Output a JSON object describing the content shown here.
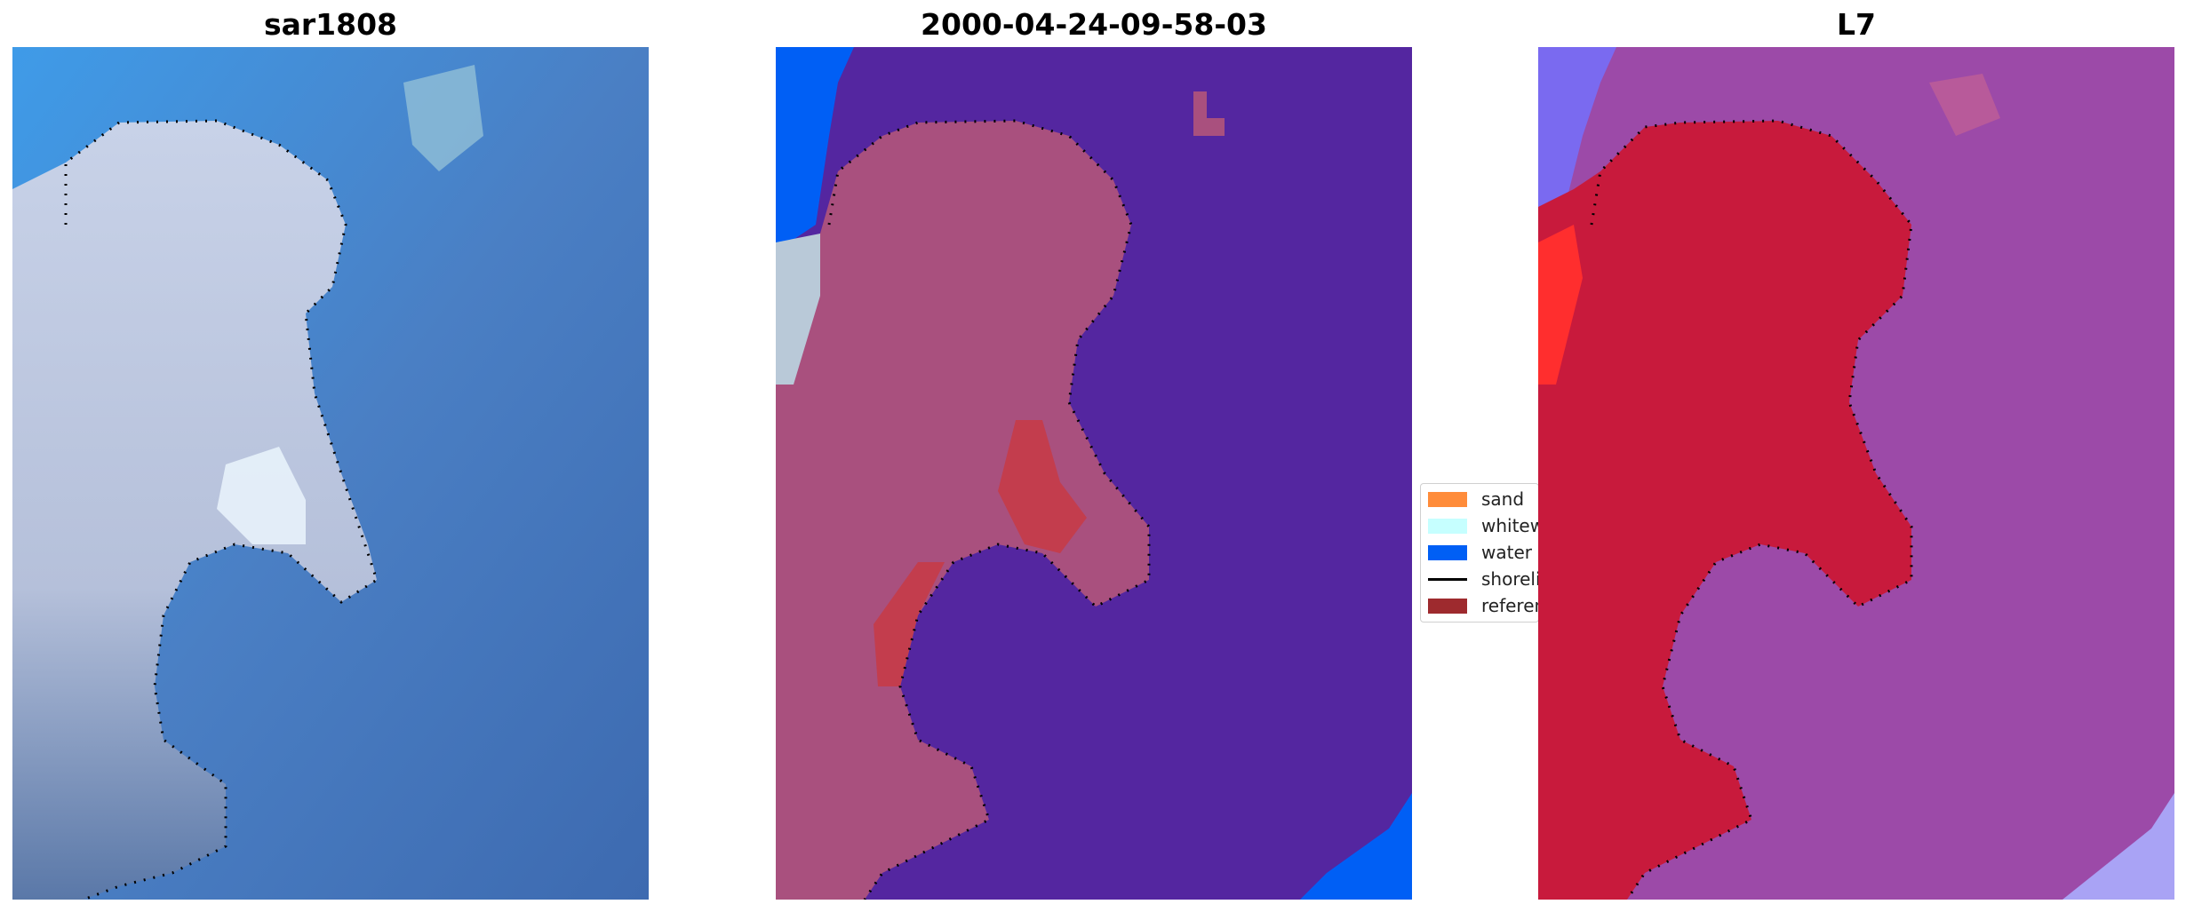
{
  "panels": [
    {
      "title": "sar1808",
      "image": "RGB satellite image of coastline with sand and water"
    },
    {
      "title": "2000-04-24-09-58-03",
      "image": "classified image: sand, whitewater, water overlay with reference shoreline"
    },
    {
      "title": "L7",
      "image": "MNDWI / classification probability image"
    }
  ],
  "legend": {
    "items": [
      {
        "label": "sand",
        "color": "#ff8c3a",
        "kind": "patch"
      },
      {
        "label": "whitewater",
        "color": "#c6ffff",
        "kind": "patch"
      },
      {
        "label": "water",
        "color": "#005ff5",
        "kind": "patch"
      },
      {
        "label": "shoreline",
        "color": "#000000",
        "kind": "line"
      },
      {
        "label": "reference",
        "color": "#9e2a2e",
        "kind": "patch"
      }
    ]
  },
  "colors": {
    "panel1_water": "#4a7fc4",
    "panel1_land": "#b7c3dc",
    "panel2_water": "#5426a0",
    "panel2_land": "#a9507e",
    "panel2_ref": "#c33d4d",
    "panel3_water": "#9c4aa8",
    "panel3_land": "#c81a3c"
  }
}
